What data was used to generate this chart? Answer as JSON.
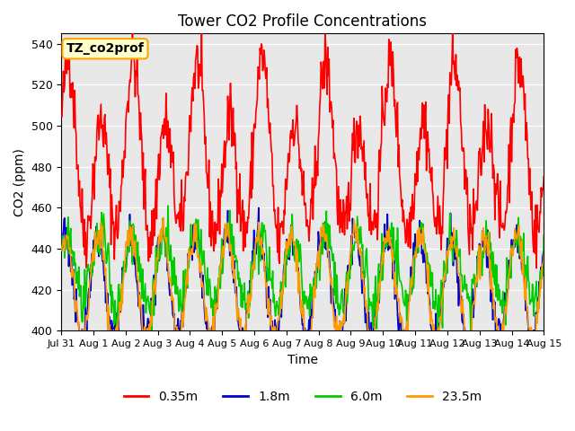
{
  "title": "Tower CO2 Profile Concentrations",
  "xlabel": "Time",
  "ylabel": "CO2 (ppm)",
  "ylim": [
    400,
    545
  ],
  "yticks": [
    400,
    420,
    440,
    460,
    480,
    500,
    520,
    540
  ],
  "legend_label": "TZ_co2prof",
  "series_labels": [
    "0.35m",
    "1.8m",
    "6.0m",
    "23.5m"
  ],
  "series_colors": [
    "#ff0000",
    "#0000cc",
    "#00cc00",
    "#ff9900"
  ],
  "background_color": "#ffffff",
  "plot_bg_color": "#e8e8e8",
  "n_days": 15,
  "samples_per_day": 48,
  "red_base": 483,
  "red_amp": 28,
  "red_noise": 8,
  "blue_base": 422,
  "blue_amp": 18,
  "blue_noise": 5,
  "green_base": 430,
  "green_amp": 12,
  "green_noise": 6,
  "orange_base": 422,
  "orange_amp": 16,
  "orange_noise": 4
}
